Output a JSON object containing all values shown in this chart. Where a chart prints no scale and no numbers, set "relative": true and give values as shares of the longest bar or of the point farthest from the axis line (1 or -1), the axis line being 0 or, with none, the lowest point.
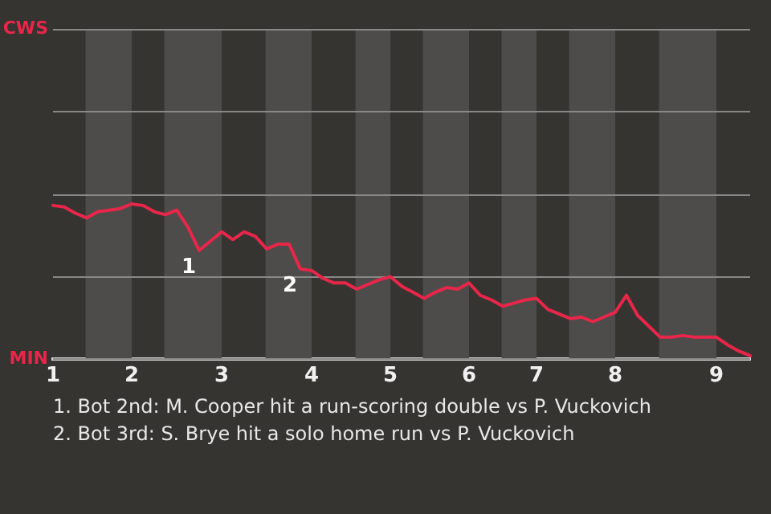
{
  "chart_data": {
    "type": "line",
    "relative": true,
    "categories": [
      "1",
      null,
      null,
      null,
      null,
      null,
      null,
      "2",
      null,
      null,
      null,
      null,
      null,
      null,
      null,
      "3",
      null,
      null,
      null,
      null,
      null,
      null,
      null,
      "4",
      null,
      null,
      null,
      null,
      null,
      null,
      "5",
      null,
      null,
      null,
      null,
      null,
      null,
      "6",
      null,
      null,
      null,
      null,
      null,
      "7",
      null,
      null,
      null,
      null,
      null,
      null,
      "8",
      null,
      null,
      null,
      null,
      null,
      null,
      null,
      null,
      "9",
      null,
      null,
      null
    ],
    "series": [
      {
        "color": "#e8264a",
        "values": [
          0.99,
          0.98,
          0.94,
          0.91,
          0.95,
          0.96,
          0.97,
          1,
          0.99,
          0.95,
          0.93,
          0.96,
          0.85,
          0.7,
          0.76,
          0.82,
          0.77,
          0.82,
          0.79,
          0.71,
          0.74,
          0.74,
          0.58,
          0.57,
          0.52,
          0.49,
          0.49,
          0.45,
          0.48,
          0.51,
          0.53,
          0.47,
          0.43,
          0.39,
          0.43,
          0.46,
          0.45,
          0.49,
          0.41,
          0.38,
          0.34,
          0.36,
          0.38,
          0.39,
          0.32,
          0.29,
          0.26,
          0.27,
          0.24,
          0.27,
          0.3,
          0.41,
          0.28,
          0.21,
          0.14,
          0.14,
          0.15,
          0.14,
          0.14,
          0.14,
          0.09,
          0.05,
          0.02
        ]
      }
    ],
    "ref_lines": [
      {
        "axis": "y",
        "value": 2.13,
        "label": "CWS",
        "color": "#8a8886"
      },
      {
        "axis": "y",
        "value": 1.6,
        "color": "#8a8886"
      },
      {
        "axis": "y",
        "value": 1.06,
        "color": "#8a8886"
      },
      {
        "axis": "y",
        "value": 0.53,
        "color": "#8a8886"
      },
      {
        "axis": "y",
        "value": 0,
        "label": "MIN",
        "color": "#8a8886"
      }
    ],
    "marker": "none",
    "legend": false,
    "annotations": [
      {
        "text": "1",
        "y": 0.7
      },
      {
        "text": "2",
        "y": 0.58
      },
      "1. Bot 2nd: M. Cooper hit a run-scoring double vs P. Vuckovich",
      "2. Bot 3rd: S. Brye hit a solo home run vs P. Vuckovich"
    ]
  }
}
